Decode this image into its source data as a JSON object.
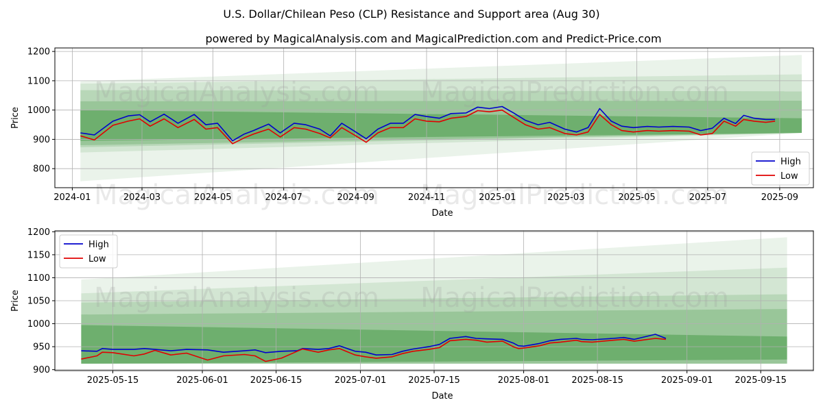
{
  "title": "U.S. Dollar/Chilean Peso (CLP) Resistance and Support area (Aug 30)",
  "subtitle": "powered by MagicalAnalysis.com and MagicalPrediction.com and Predict-Price.com",
  "watermarks": [
    "MagicalAnalysis.com",
    "MagicalPrediction.com"
  ],
  "colors": {
    "high": "#0000cc",
    "low": "#e00000",
    "band": "#2e8b2e",
    "grid": "#b0b0b0"
  },
  "chart_data": [
    {
      "type": "line",
      "xlabel": "Date",
      "ylabel": "Price",
      "legend_position": "lower-right",
      "grid": true,
      "x_ticks": [
        "2024-01",
        "2024-03",
        "2024-05",
        "2024-07",
        "2024-09",
        "2024-11",
        "2025-01",
        "2025-03",
        "2025-05",
        "2025-07",
        "2025-09"
      ],
      "y_ticks": [
        800,
        900,
        1000,
        1100,
        1200
      ],
      "xlim": [
        "2023-12-17",
        "2025-09-30"
      ],
      "ylim": [
        735,
        1212
      ],
      "series": [
        {
          "name": "High",
          "color": "#0000cc",
          "x": [
            "2024-01-08",
            "2024-01-20",
            "2024-02-05",
            "2024-02-18",
            "2024-02-28",
            "2024-03-08",
            "2024-03-20",
            "2024-04-01",
            "2024-04-15",
            "2024-04-25",
            "2024-05-05",
            "2024-05-18",
            "2024-05-28",
            "2024-06-05",
            "2024-06-18",
            "2024-06-28",
            "2024-07-10",
            "2024-07-20",
            "2024-08-01",
            "2024-08-10",
            "2024-08-20",
            "2024-09-01",
            "2024-09-10",
            "2024-09-20",
            "2024-10-01",
            "2024-10-12",
            "2024-10-22",
            "2024-11-01",
            "2024-11-12",
            "2024-11-22",
            "2024-12-05",
            "2024-12-15",
            "2024-12-25",
            "2025-01-05",
            "2025-01-15",
            "2025-01-25",
            "2025-02-05",
            "2025-02-15",
            "2025-02-28",
            "2025-03-10",
            "2025-03-20",
            "2025-03-30",
            "2025-04-09",
            "2025-04-18",
            "2025-04-28",
            "2025-05-10",
            "2025-05-20",
            "2025-06-01",
            "2025-06-15",
            "2025-06-25",
            "2025-07-05",
            "2025-07-15",
            "2025-07-25",
            "2025-08-01",
            "2025-08-10",
            "2025-08-20",
            "2025-08-28"
          ],
          "values": [
            922,
            915,
            962,
            980,
            984,
            960,
            986,
            955,
            985,
            950,
            955,
            895,
            918,
            930,
            952,
            922,
            955,
            950,
            935,
            912,
            955,
            925,
            902,
            935,
            955,
            955,
            985,
            978,
            972,
            988,
            990,
            1010,
            1005,
            1012,
            990,
            965,
            950,
            958,
            935,
            925,
            940,
            1005,
            962,
            945,
            940,
            944,
            942,
            944,
            942,
            930,
            938,
            972,
            954,
            982,
            972,
            968,
            968
          ]
        },
        {
          "name": "Low",
          "color": "#e00000",
          "x": [
            "2024-01-08",
            "2024-01-20",
            "2024-02-05",
            "2024-02-18",
            "2024-02-28",
            "2024-03-08",
            "2024-03-20",
            "2024-04-01",
            "2024-04-15",
            "2024-04-25",
            "2024-05-05",
            "2024-05-18",
            "2024-05-28",
            "2024-06-05",
            "2024-06-18",
            "2024-06-28",
            "2024-07-10",
            "2024-07-20",
            "2024-08-01",
            "2024-08-10",
            "2024-08-20",
            "2024-09-01",
            "2024-09-10",
            "2024-09-20",
            "2024-10-01",
            "2024-10-12",
            "2024-10-22",
            "2024-11-01",
            "2024-11-12",
            "2024-11-22",
            "2024-12-05",
            "2024-12-15",
            "2024-12-25",
            "2025-01-05",
            "2025-01-15",
            "2025-01-25",
            "2025-02-05",
            "2025-02-15",
            "2025-02-28",
            "2025-03-10",
            "2025-03-20",
            "2025-03-30",
            "2025-04-09",
            "2025-04-18",
            "2025-04-28",
            "2025-05-10",
            "2025-05-20",
            "2025-06-01",
            "2025-06-15",
            "2025-06-25",
            "2025-07-05",
            "2025-07-15",
            "2025-07-25",
            "2025-08-01",
            "2025-08-10",
            "2025-08-20",
            "2025-08-28"
          ],
          "values": [
            912,
            898,
            948,
            962,
            970,
            945,
            970,
            940,
            968,
            935,
            940,
            885,
            905,
            918,
            935,
            908,
            940,
            935,
            920,
            905,
            940,
            912,
            890,
            922,
            940,
            940,
            970,
            962,
            960,
            972,
            978,
            998,
            994,
            1000,
            975,
            950,
            935,
            940,
            920,
            915,
            925,
            985,
            950,
            930,
            925,
            930,
            928,
            930,
            928,
            915,
            920,
            962,
            945,
            968,
            962,
            958,
            962
          ]
        }
      ],
      "bands": [
        {
          "x": [
            "2024-01-08",
            "2025-09-20"
          ],
          "upper": [
            1098,
            1188
          ],
          "lower": [
            757,
            922
          ]
        },
        {
          "x": [
            "2024-01-08",
            "2025-09-20"
          ],
          "upper": [
            1090,
            1122
          ],
          "lower": [
            855,
            922
          ]
        },
        {
          "x": [
            "2024-01-08",
            "2025-09-20"
          ],
          "upper": [
            1068,
            1064
          ],
          "lower": [
            873,
            922
          ]
        },
        {
          "x": [
            "2024-01-08",
            "2025-09-20"
          ],
          "upper": [
            1030,
            1032
          ],
          "lower": [
            880,
            922
          ]
        },
        {
          "x": [
            "2024-01-08",
            "2025-09-20"
          ],
          "upper": [
            1000,
            972
          ],
          "lower": [
            895,
            922
          ]
        }
      ]
    },
    {
      "type": "line",
      "xlabel": "Date",
      "ylabel": "Price",
      "legend_position": "upper-left",
      "grid": true,
      "x_ticks": [
        "2025-05-15",
        "2025-06-01",
        "2025-06-15",
        "2025-07-01",
        "2025-07-15",
        "2025-08-01",
        "2025-08-15",
        "2025-09-01",
        "2025-09-15"
      ],
      "y_ticks": [
        900,
        950,
        1000,
        1050,
        1100,
        1150,
        1200
      ],
      "xlim": [
        "2025-05-04",
        "2025-09-25"
      ],
      "ylim": [
        898,
        1202
      ],
      "series": [
        {
          "name": "High",
          "color": "#0000cc",
          "x": [
            "2025-05-09",
            "2025-05-12",
            "2025-05-13",
            "2025-05-15",
            "2025-05-19",
            "2025-05-21",
            "2025-05-23",
            "2025-05-26",
            "2025-05-29",
            "2025-06-02",
            "2025-06-05",
            "2025-06-09",
            "2025-06-11",
            "2025-06-13",
            "2025-06-16",
            "2025-06-19",
            "2025-06-20",
            "2025-06-23",
            "2025-06-25",
            "2025-06-27",
            "2025-06-30",
            "2025-07-02",
            "2025-07-04",
            "2025-07-07",
            "2025-07-09",
            "2025-07-11",
            "2025-07-14",
            "2025-07-16",
            "2025-07-18",
            "2025-07-21",
            "2025-07-23",
            "2025-07-25",
            "2025-07-28",
            "2025-07-30",
            "2025-07-31",
            "2025-08-01",
            "2025-08-04",
            "2025-08-06",
            "2025-08-08",
            "2025-08-11",
            "2025-08-12",
            "2025-08-14",
            "2025-08-18",
            "2025-08-20",
            "2025-08-22",
            "2025-08-26",
            "2025-08-28"
          ],
          "values": [
            941,
            940,
            946,
            944,
            944,
            946,
            944,
            941,
            944,
            943,
            938,
            941,
            943,
            937,
            940,
            941,
            946,
            944,
            946,
            952,
            940,
            938,
            932,
            933,
            940,
            945,
            950,
            955,
            968,
            972,
            968,
            967,
            966,
            958,
            952,
            951,
            957,
            963,
            966,
            968,
            966,
            965,
            968,
            970,
            966,
            977,
            968
          ],
          "values_note": ""
        },
        {
          "name": "Low",
          "color": "#e00000",
          "x": [
            "2025-05-09",
            "2025-05-12",
            "2025-05-13",
            "2025-05-15",
            "2025-05-19",
            "2025-05-21",
            "2025-05-23",
            "2025-05-26",
            "2025-05-29",
            "2025-06-02",
            "2025-06-05",
            "2025-06-09",
            "2025-06-11",
            "2025-06-13",
            "2025-06-16",
            "2025-06-19",
            "2025-06-20",
            "2025-06-23",
            "2025-06-25",
            "2025-06-27",
            "2025-06-30",
            "2025-07-02",
            "2025-07-04",
            "2025-07-07",
            "2025-07-09",
            "2025-07-11",
            "2025-07-14",
            "2025-07-16",
            "2025-07-18",
            "2025-07-21",
            "2025-07-23",
            "2025-07-25",
            "2025-07-28",
            "2025-07-30",
            "2025-07-31",
            "2025-08-01",
            "2025-08-04",
            "2025-08-06",
            "2025-08-08",
            "2025-08-11",
            "2025-08-12",
            "2025-08-14",
            "2025-08-18",
            "2025-08-20",
            "2025-08-22",
            "2025-08-26",
            "2025-08-28"
          ],
          "values": [
            923,
            930,
            938,
            937,
            930,
            934,
            942,
            932,
            936,
            921,
            930,
            933,
            930,
            918,
            925,
            940,
            945,
            938,
            943,
            946,
            932,
            928,
            925,
            928,
            935,
            940,
            944,
            948,
            963,
            966,
            964,
            960,
            962,
            950,
            946,
            947,
            952,
            958,
            960,
            964,
            961,
            960,
            964,
            966,
            962,
            968,
            966
          ]
        }
      ],
      "bands": [
        {
          "x": [
            "2025-05-09",
            "2025-09-20"
          ],
          "upper": [
            1096,
            1188
          ],
          "lower": [
            913,
            913
          ]
        },
        {
          "x": [
            "2025-05-09",
            "2025-09-20"
          ],
          "upper": [
            1066,
            1122
          ],
          "lower": [
            913,
            913
          ]
        },
        {
          "x": [
            "2025-05-09",
            "2025-09-20"
          ],
          "upper": [
            1046,
            1064
          ],
          "lower": [
            913,
            913
          ]
        },
        {
          "x": [
            "2025-05-09",
            "2025-09-20"
          ],
          "upper": [
            1020,
            1032
          ],
          "lower": [
            913,
            913
          ]
        },
        {
          "x": [
            "2025-05-09",
            "2025-09-20"
          ],
          "upper": [
            997,
            972
          ],
          "lower": [
            913,
            922
          ]
        }
      ]
    }
  ]
}
